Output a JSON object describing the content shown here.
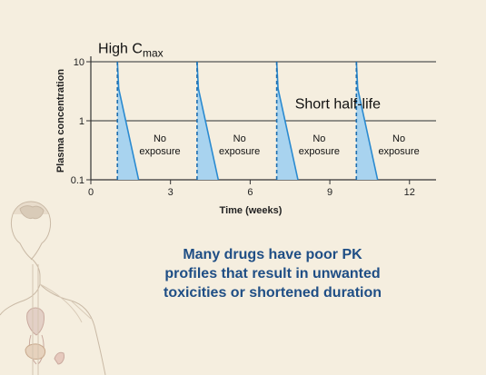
{
  "chart_data": {
    "type": "area",
    "xlabel": "Time (weeks)",
    "ylabel": "Plasma concentration",
    "y_scale": "log",
    "xlim": [
      0,
      13
    ],
    "ylim": [
      0.1,
      10
    ],
    "x_ticks": [
      "0",
      "3",
      "6",
      "9",
      "12"
    ],
    "x_tick_values": [
      0,
      3,
      6,
      9,
      12
    ],
    "y_ticks": [
      "0.1",
      "1",
      "10"
    ],
    "y_tick_values": [
      0.1,
      1,
      10
    ],
    "grid": "horizontal",
    "doses": [
      {
        "peak_week": 1.0,
        "peak": 10,
        "mid_week": 1.05,
        "mid": 3.5,
        "end_week": 1.8,
        "end": 0.1
      },
      {
        "peak_week": 4.0,
        "peak": 10,
        "mid_week": 4.05,
        "mid": 3.5,
        "end_week": 4.8,
        "end": 0.1
      },
      {
        "peak_week": 7.0,
        "peak": 10,
        "mid_week": 7.05,
        "mid": 3.5,
        "end_week": 7.8,
        "end": 0.1
      },
      {
        "peak_week": 10.0,
        "peak": 10,
        "mid_week": 10.05,
        "mid": 3.5,
        "end_week": 10.8,
        "end": 0.1
      }
    ],
    "annotations": [
      {
        "text": "High C",
        "sub": "max",
        "x_week": 1.5,
        "y": 14
      },
      {
        "text": "Short half-life",
        "x_week": 9.3,
        "y": 1.6
      }
    ],
    "gap_labels": [
      {
        "line1": "No",
        "line2": "exposure",
        "x_week": 2.6
      },
      {
        "line1": "No",
        "line2": "exposure",
        "x_week": 5.6
      },
      {
        "line1": "No",
        "line2": "exposure",
        "x_week": 8.6
      },
      {
        "line1": "No",
        "line2": "exposure",
        "x_week": 11.6
      }
    ],
    "colors": {
      "fill": "#a8d3ef",
      "line": "#2a8ad0",
      "dash": "#1e6fb0",
      "grid": "#555555",
      "axis": "#333333"
    }
  },
  "caption": {
    "line1": "Many drugs have poor PK",
    "line2": "profiles that result in unwanted",
    "line3": "toxicities or shortened duration"
  }
}
